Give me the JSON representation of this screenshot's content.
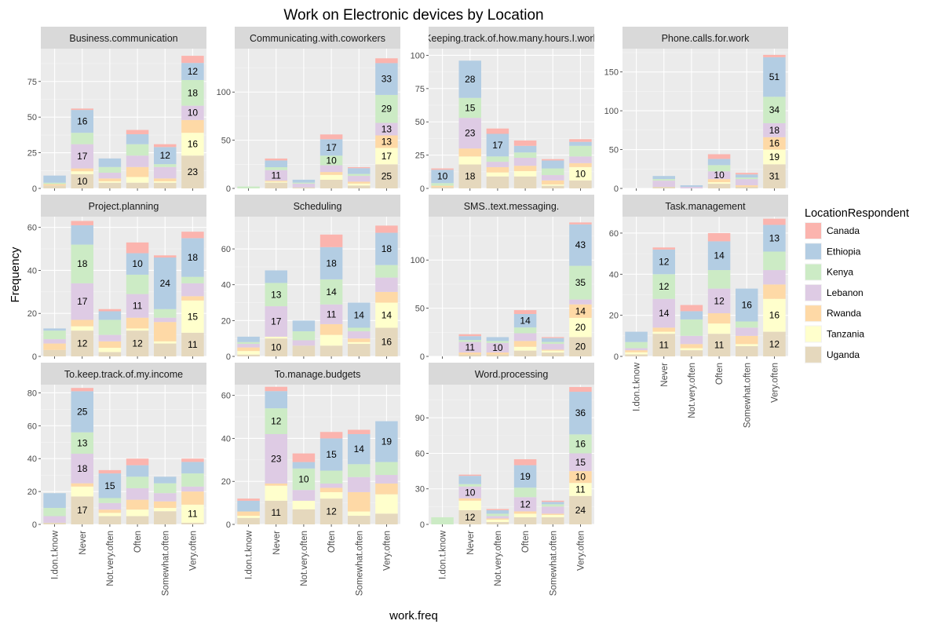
{
  "chart_data": {
    "type": "bar",
    "stacked": true,
    "title": "Work on Electronic devices by Location",
    "xlabel": "work.freq",
    "ylabel": "Frequency",
    "categories": [
      "I.don.t.know",
      "Never",
      "Not.very.often",
      "Often",
      "Somewhat.often",
      "Very.often"
    ],
    "legend": {
      "title": "LocationRespondent",
      "position": "right",
      "entries": [
        "Canada",
        "Ethiopia",
        "Kenya",
        "Lebanon",
        "Rwanda",
        "Tanzania",
        "Uganda"
      ]
    },
    "colors": {
      "Canada": "#fbb4ae",
      "Ethiopia": "#b3cde3",
      "Kenya": "#ccebc5",
      "Lebanon": "#decbe4",
      "Rwanda": "#fed9a6",
      "Tanzania": "#ffffcc",
      "Uganda": "#e5d8bd"
    },
    "panels": [
      {
        "title": "Business.communication",
        "ylim": [
          0,
          98
        ],
        "yticks": [
          0,
          25,
          50,
          75
        ],
        "series": {
          "Canada": [
            0,
            1,
            0,
            3,
            2,
            5
          ],
          "Ethiopia": [
            5,
            16,
            6,
            7,
            12,
            12
          ],
          "Kenya": [
            1,
            8,
            4,
            8,
            2,
            18
          ],
          "Lebanon": [
            0,
            17,
            4,
            8,
            8,
            10
          ],
          "Rwanda": [
            1,
            2,
            2,
            7,
            2,
            9
          ],
          "Tanzania": [
            0,
            2,
            1,
            4,
            1,
            16
          ],
          "Uganda": [
            2,
            10,
            4,
            4,
            4,
            23
          ]
        }
      },
      {
        "title": "Communicating.with.coworkers",
        "ylim": [
          0,
          145
        ],
        "yticks": [
          0,
          50,
          100
        ],
        "series": {
          "Canada": [
            0,
            2,
            0,
            5,
            1,
            5
          ],
          "Ethiopia": [
            0,
            7,
            3,
            17,
            6,
            33
          ],
          "Kenya": [
            2,
            3,
            1,
            10,
            2,
            29
          ],
          "Lebanon": [
            0,
            11,
            4,
            7,
            6,
            13
          ],
          "Rwanda": [
            0,
            1,
            0,
            3,
            2,
            13
          ],
          "Tanzania": [
            0,
            1,
            0,
            5,
            2,
            17
          ],
          "Uganda": [
            0,
            6,
            1,
            9,
            3,
            25
          ]
        }
      },
      {
        "title": "Keeping.track.of.how.many.hours.I.work",
        "ylim": [
          0,
          105
        ],
        "yticks": [
          0,
          25,
          50,
          75,
          100
        ],
        "series": {
          "Canada": [
            1,
            0,
            4,
            4,
            1,
            2
          ],
          "Ethiopia": [
            10,
            28,
            17,
            5,
            6,
            3
          ],
          "Kenya": [
            2,
            15,
            4,
            4,
            5,
            8
          ],
          "Lebanon": [
            0,
            23,
            4,
            6,
            4,
            5
          ],
          "Rwanda": [
            1,
            6,
            4,
            4,
            3,
            3
          ],
          "Tanzania": [
            0,
            6,
            3,
            4,
            1,
            10
          ],
          "Uganda": [
            1,
            18,
            9,
            9,
            2,
            6
          ]
        }
      },
      {
        "title": "Phone.calls.for.work",
        "ylim": [
          0,
          180
        ],
        "yticks": [
          0,
          50,
          100,
          150
        ],
        "series": {
          "Canada": [
            0,
            0,
            0,
            6,
            2,
            3
          ],
          "Ethiopia": [
            0,
            4,
            2,
            8,
            4,
            51
          ],
          "Kenya": [
            0,
            2,
            0,
            8,
            2,
            34
          ],
          "Lebanon": [
            0,
            8,
            2,
            10,
            8,
            18
          ],
          "Rwanda": [
            0,
            0,
            0,
            4,
            2,
            16
          ],
          "Tanzania": [
            0,
            0,
            0,
            2,
            0,
            19
          ],
          "Uganda": [
            0,
            2,
            0,
            6,
            2,
            31
          ]
        }
      },
      {
        "title": "Project.planning",
        "ylim": [
          0,
          65
        ],
        "yticks": [
          0,
          20,
          40,
          60
        ],
        "series": {
          "Canada": [
            0,
            2,
            1,
            5,
            1,
            3
          ],
          "Ethiopia": [
            1,
            9,
            4,
            10,
            24,
            18
          ],
          "Kenya": [
            4,
            18,
            7,
            9,
            4,
            3
          ],
          "Lebanon": [
            2,
            17,
            3,
            11,
            2,
            6
          ],
          "Rwanda": [
            3,
            3,
            3,
            5,
            9,
            2
          ],
          "Tanzania": [
            0,
            2,
            2,
            1,
            1,
            15
          ],
          "Uganda": [
            3,
            12,
            2,
            12,
            6,
            11
          ]
        }
      },
      {
        "title": "Scheduling",
        "ylim": [
          0,
          78
        ],
        "yticks": [
          0,
          20,
          40,
          60
        ],
        "series": {
          "Canada": [
            0,
            0,
            0,
            7,
            0,
            4
          ],
          "Ethiopia": [
            3,
            7,
            6,
            18,
            14,
            18
          ],
          "Kenya": [
            1,
            13,
            5,
            14,
            2,
            7
          ],
          "Lebanon": [
            2,
            17,
            3,
            11,
            4,
            8
          ],
          "Rwanda": [
            2,
            0,
            0,
            6,
            2,
            6
          ],
          "Tanzania": [
            2,
            1,
            0,
            6,
            1,
            14
          ],
          "Uganda": [
            1,
            10,
            6,
            6,
            7,
            16
          ]
        }
      },
      {
        "title": "SMS..text.messaging.",
        "ylim": [
          0,
          145
        ],
        "yticks": [
          0,
          50,
          100
        ],
        "series": {
          "Canada": [
            0,
            2,
            0,
            4,
            1,
            2
          ],
          "Ethiopia": [
            0,
            4,
            4,
            14,
            4,
            43
          ],
          "Kenya": [
            0,
            2,
            2,
            6,
            2,
            35
          ],
          "Lebanon": [
            0,
            11,
            10,
            8,
            6,
            5
          ],
          "Rwanda": [
            0,
            2,
            2,
            6,
            1,
            14
          ],
          "Tanzania": [
            0,
            0,
            0,
            4,
            2,
            20
          ],
          "Uganda": [
            0,
            2,
            2,
            6,
            4,
            20
          ]
        }
      },
      {
        "title": "Task.management",
        "ylim": [
          0,
          68
        ],
        "yticks": [
          0,
          20,
          40,
          60
        ],
        "series": {
          "Canada": [
            0,
            1,
            3,
            4,
            0,
            3
          ],
          "Ethiopia": [
            5,
            12,
            4,
            14,
            16,
            13
          ],
          "Kenya": [
            3,
            12,
            8,
            9,
            3,
            9
          ],
          "Lebanon": [
            1,
            14,
            4,
            12,
            4,
            7
          ],
          "Rwanda": [
            1,
            2,
            2,
            5,
            4,
            7
          ],
          "Tanzania": [
            1,
            1,
            1,
            5,
            1,
            16
          ],
          "Uganda": [
            1,
            11,
            3,
            11,
            5,
            12
          ]
        }
      },
      {
        "title": "To.keep.track.of.my.income",
        "ylim": [
          0,
          85
        ],
        "yticks": [
          0,
          20,
          40,
          60,
          80
        ],
        "series": {
          "Canada": [
            0,
            2,
            2,
            4,
            0,
            2
          ],
          "Ethiopia": [
            9,
            25,
            15,
            7,
            4,
            7
          ],
          "Kenya": [
            5,
            13,
            3,
            7,
            6,
            8
          ],
          "Lebanon": [
            4,
            18,
            4,
            7,
            5,
            3
          ],
          "Rwanda": [
            0,
            2,
            2,
            6,
            4,
            8
          ],
          "Tanzania": [
            0,
            6,
            2,
            4,
            2,
            11
          ],
          "Uganda": [
            1,
            17,
            5,
            5,
            8,
            1
          ]
        }
      },
      {
        "title": "To.manage.budgets",
        "ylim": [
          0,
          65
        ],
        "yticks": [
          0,
          20,
          40,
          60
        ],
        "series": {
          "Canada": [
            1,
            2,
            4,
            3,
            2,
            0
          ],
          "Ethiopia": [
            5,
            8,
            3,
            15,
            14,
            19
          ],
          "Kenya": [
            0,
            12,
            10,
            6,
            6,
            6
          ],
          "Lebanon": [
            0,
            23,
            5,
            2,
            7,
            4
          ],
          "Rwanda": [
            2,
            1,
            0,
            2,
            9,
            5
          ],
          "Tanzania": [
            1,
            7,
            4,
            3,
            2,
            9
          ],
          "Uganda": [
            3,
            11,
            7,
            12,
            4,
            5
          ]
        }
      },
      {
        "title": "Word.processing",
        "ylim": [
          0,
          118
        ],
        "yticks": [
          0,
          30,
          60,
          90
        ],
        "series": {
          "Canada": [
            0,
            1,
            1,
            5,
            1,
            4
          ],
          "Ethiopia": [
            0,
            7,
            3,
            19,
            2,
            36
          ],
          "Kenya": [
            6,
            2,
            2,
            8,
            2,
            16
          ],
          "Lebanon": [
            0,
            10,
            2,
            12,
            6,
            15
          ],
          "Rwanda": [
            0,
            2,
            1,
            2,
            1,
            10
          ],
          "Tanzania": [
            0,
            8,
            2,
            3,
            2,
            11
          ],
          "Uganda": [
            0,
            12,
            2,
            6,
            6,
            24
          ]
        }
      }
    ]
  }
}
